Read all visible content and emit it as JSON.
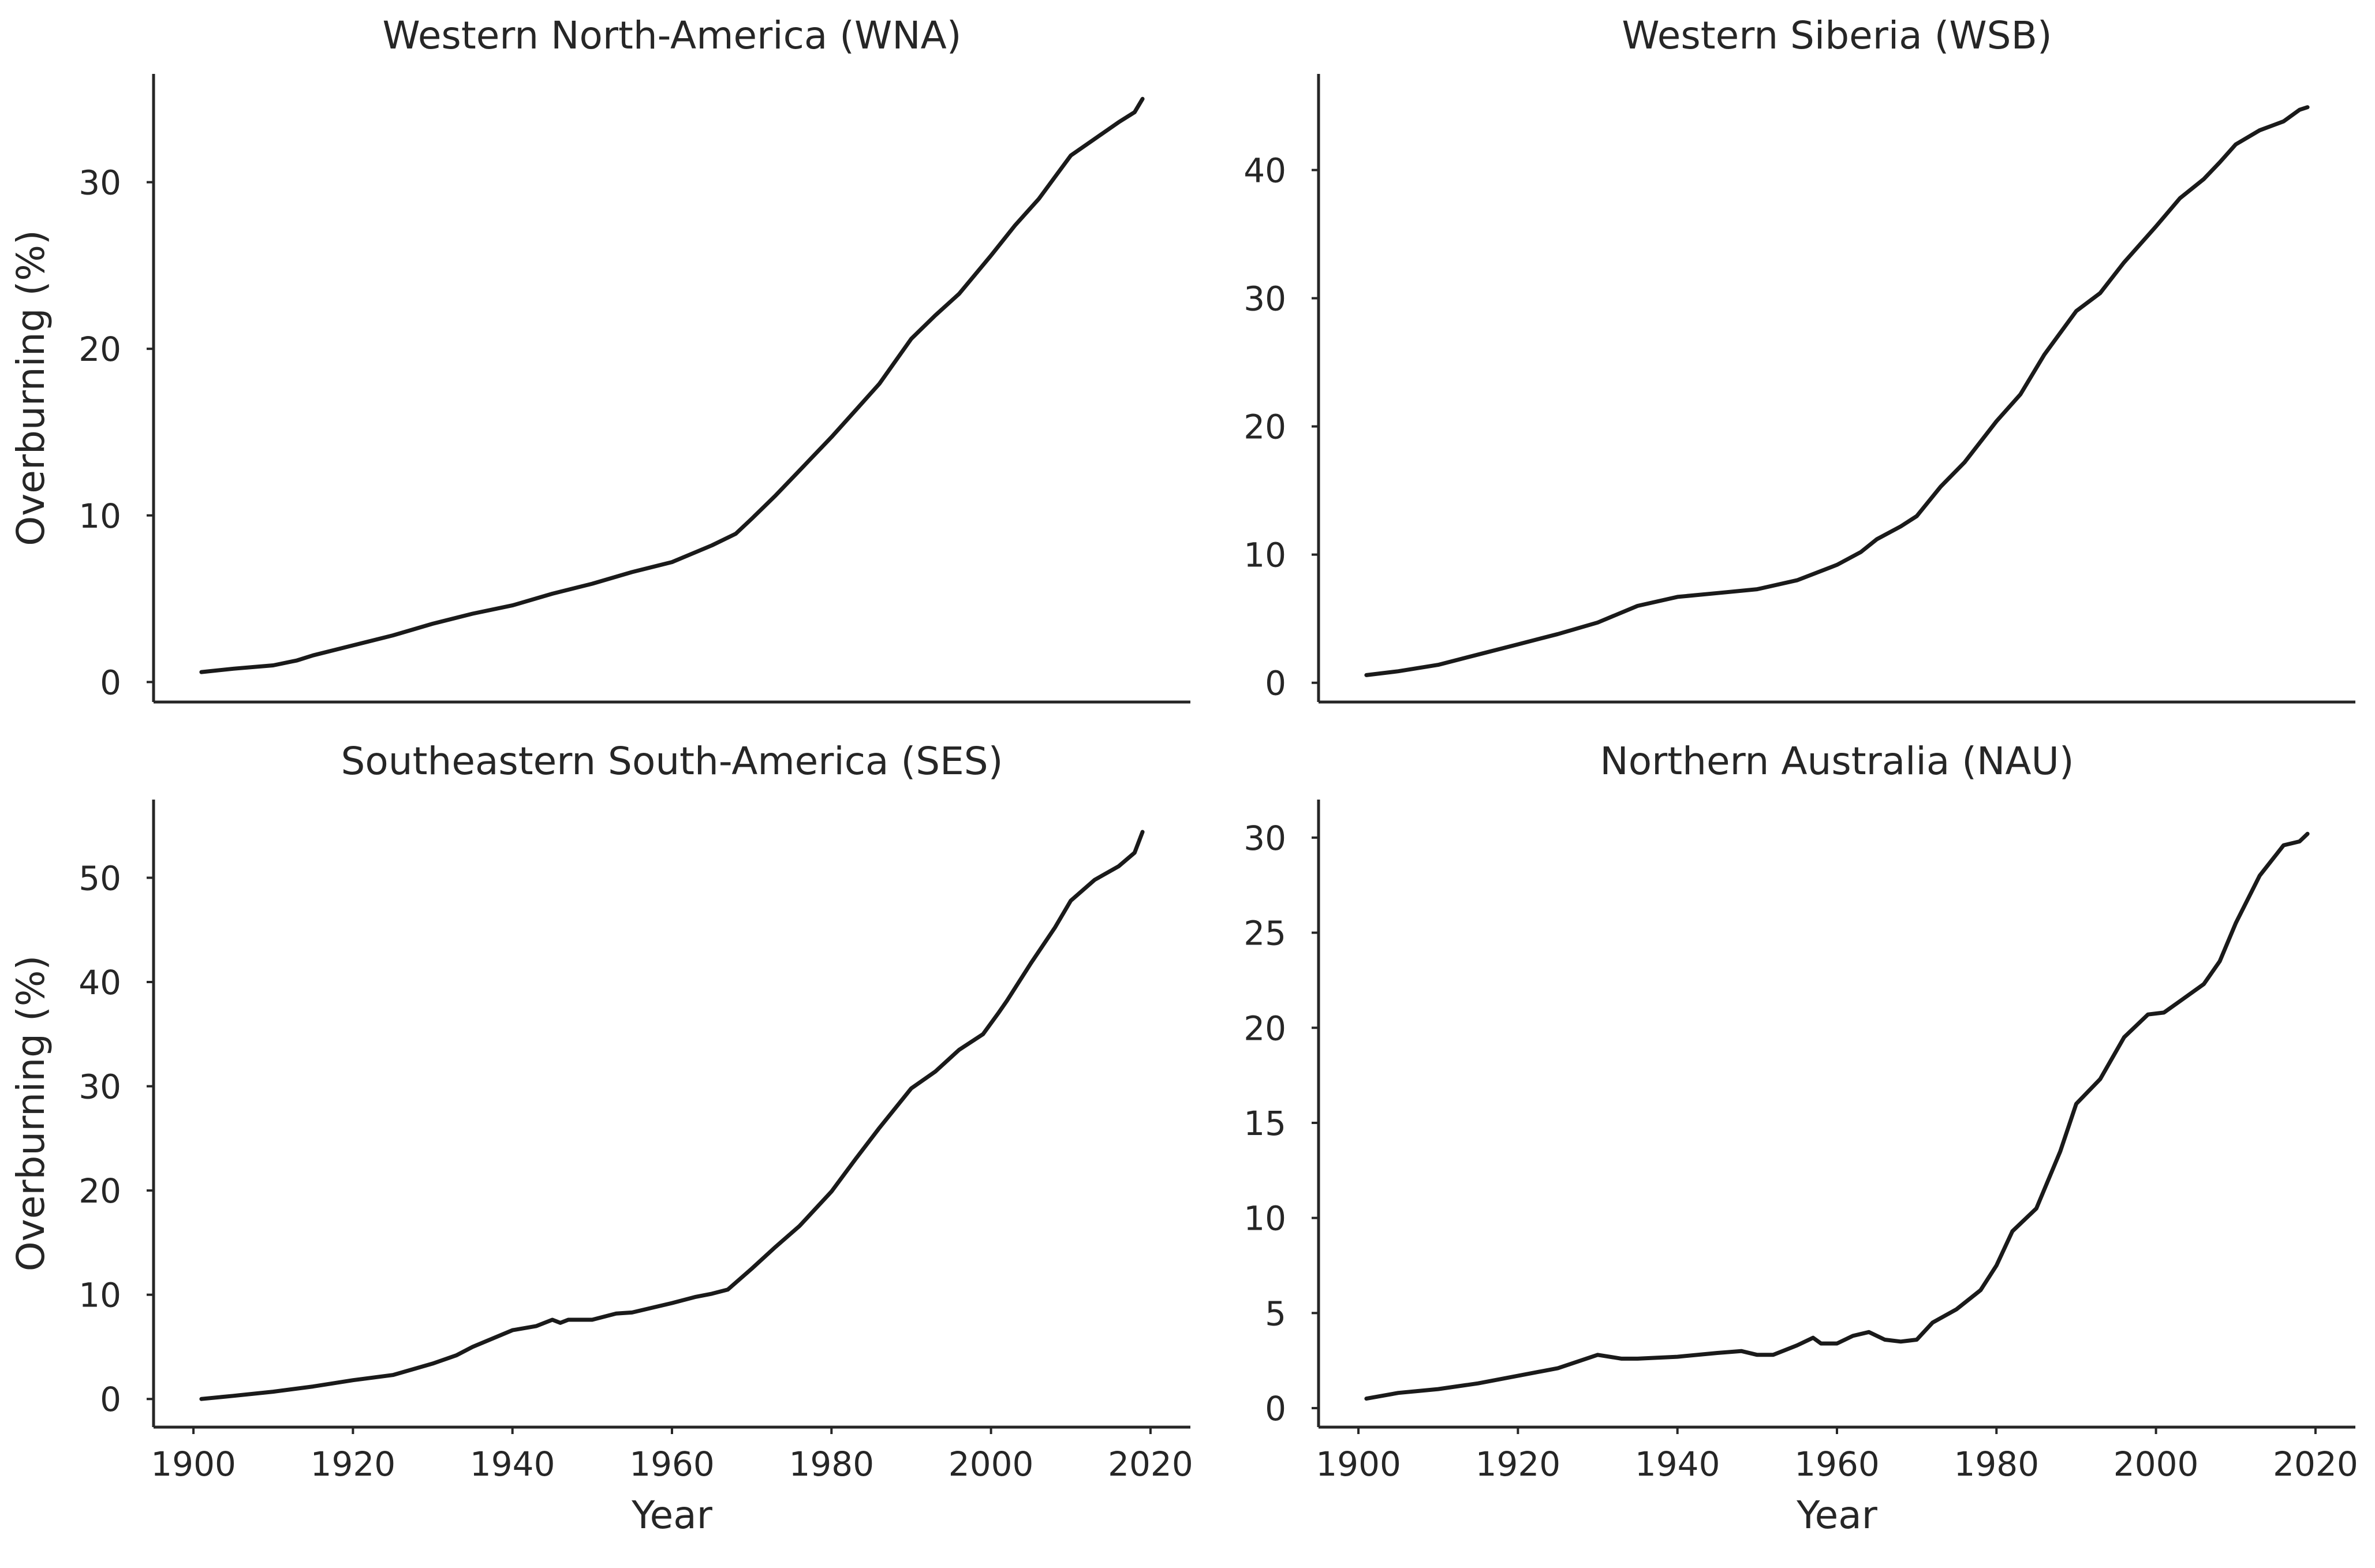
{
  "chart_data": [
    {
      "type": "line",
      "title": "Western North-America (WNA)",
      "xlabel": "",
      "ylabel": "Overburning (%)",
      "xlim": [
        1895,
        2025
      ],
      "ylim": [
        -1.2,
        36.5
      ],
      "xticks": [],
      "yticks": [
        0,
        10,
        20,
        30
      ],
      "grid": false,
      "series": [
        {
          "x": [
            1901,
            1905,
            1910,
            1913,
            1915,
            1920,
            1925,
            1930,
            1935,
            1940,
            1945,
            1950,
            1955,
            1960,
            1965,
            1968,
            1970,
            1973,
            1976,
            1980,
            1983,
            1986,
            1990,
            1993,
            1996,
            2000,
            2003,
            2006,
            2008,
            2010,
            2013,
            2016,
            2018,
            2019
          ],
          "y": [
            0.6,
            0.8,
            1.0,
            1.3,
            1.6,
            2.2,
            2.8,
            3.5,
            4.1,
            4.6,
            5.3,
            5.9,
            6.6,
            7.2,
            8.2,
            8.9,
            9.8,
            11.2,
            12.7,
            14.7,
            16.3,
            17.9,
            20.6,
            22.0,
            23.3,
            25.6,
            27.4,
            29.0,
            30.3,
            31.6,
            32.6,
            33.6,
            34.2,
            35.0
          ]
        }
      ]
    },
    {
      "type": "line",
      "title": "Western Siberia (WSB)",
      "xlabel": "",
      "ylabel": "",
      "xlim": [
        1895,
        2025
      ],
      "ylim": [
        -1.5,
        47.5
      ],
      "xticks": [],
      "yticks": [
        0,
        10,
        20,
        30,
        40
      ],
      "grid": false,
      "series": [
        {
          "x": [
            1901,
            1905,
            1910,
            1915,
            1920,
            1925,
            1930,
            1935,
            1940,
            1945,
            1950,
            1955,
            1960,
            1963,
            1965,
            1968,
            1970,
            1973,
            1976,
            1980,
            1983,
            1986,
            1990,
            1993,
            1996,
            2000,
            2003,
            2006,
            2008,
            2010,
            2013,
            2016,
            2018,
            2019
          ],
          "y": [
            0.6,
            0.9,
            1.4,
            2.2,
            3.0,
            3.8,
            4.7,
            6.0,
            6.7,
            7.0,
            7.3,
            8.0,
            9.2,
            10.2,
            11.2,
            12.2,
            13.0,
            15.3,
            17.2,
            20.4,
            22.5,
            25.6,
            29.0,
            30.4,
            32.8,
            35.6,
            37.8,
            39.3,
            40.6,
            42.0,
            43.1,
            43.8,
            44.7,
            44.9
          ]
        }
      ]
    },
    {
      "type": "line",
      "title": "Southeastern South-America (SES)",
      "xlabel": "Year",
      "ylabel": "Overburning (%)",
      "xlim": [
        1895,
        2025
      ],
      "ylim": [
        -2.7,
        57.5
      ],
      "xticks": [
        1900,
        1920,
        1940,
        1960,
        1980,
        2000,
        2020
      ],
      "yticks": [
        0,
        10,
        20,
        30,
        40,
        50
      ],
      "grid": false,
      "series": [
        {
          "x": [
            1901,
            1905,
            1910,
            1915,
            1920,
            1925,
            1930,
            1933,
            1935,
            1940,
            1943,
            1945,
            1946,
            1947,
            1950,
            1953,
            1955,
            1960,
            1963,
            1965,
            1967,
            1970,
            1973,
            1976,
            1980,
            1983,
            1986,
            1990,
            1993,
            1996,
            1999,
            2001,
            2002,
            2005,
            2008,
            2010,
            2013,
            2016,
            2018,
            2019
          ],
          "y": [
            0.0,
            0.3,
            0.7,
            1.2,
            1.8,
            2.3,
            3.4,
            4.2,
            5.0,
            6.6,
            7.0,
            7.6,
            7.3,
            7.6,
            7.6,
            8.2,
            8.3,
            9.2,
            9.8,
            10.1,
            10.5,
            12.5,
            14.6,
            16.6,
            19.9,
            23.0,
            26.0,
            29.8,
            31.4,
            33.5,
            35.0,
            37.1,
            38.2,
            41.8,
            45.2,
            47.8,
            49.8,
            51.1,
            52.4,
            54.4
          ]
        }
      ]
    },
    {
      "type": "line",
      "title": "Northern Australia (NAU)",
      "xlabel": "Year",
      "ylabel": "",
      "xlim": [
        1895,
        2025
      ],
      "ylim": [
        -1.0,
        32.0
      ],
      "xticks": [
        1900,
        1920,
        1940,
        1960,
        1980,
        2000,
        2020
      ],
      "yticks": [
        0,
        5,
        10,
        15,
        20,
        25,
        30
      ],
      "grid": false,
      "series": [
        {
          "x": [
            1901,
            1905,
            1910,
            1915,
            1920,
            1925,
            1930,
            1933,
            1935,
            1940,
            1945,
            1948,
            1950,
            1952,
            1955,
            1957,
            1958,
            1960,
            1962,
            1964,
            1966,
            1968,
            1970,
            1972,
            1975,
            1978,
            1980,
            1982,
            1985,
            1988,
            1990,
            1993,
            1996,
            1999,
            2001,
            2003,
            2006,
            2008,
            2010,
            2013,
            2016,
            2018,
            2019
          ],
          "y": [
            0.5,
            0.8,
            1.0,
            1.3,
            1.7,
            2.1,
            2.8,
            2.6,
            2.6,
            2.7,
            2.9,
            3.0,
            2.8,
            2.8,
            3.3,
            3.7,
            3.4,
            3.4,
            3.8,
            4.0,
            3.6,
            3.5,
            3.6,
            4.5,
            5.2,
            6.2,
            7.5,
            9.3,
            10.5,
            13.5,
            16.0,
            17.3,
            19.5,
            20.7,
            20.8,
            21.4,
            22.3,
            23.5,
            25.5,
            28.0,
            29.6,
            29.8,
            30.2
          ]
        }
      ]
    }
  ]
}
